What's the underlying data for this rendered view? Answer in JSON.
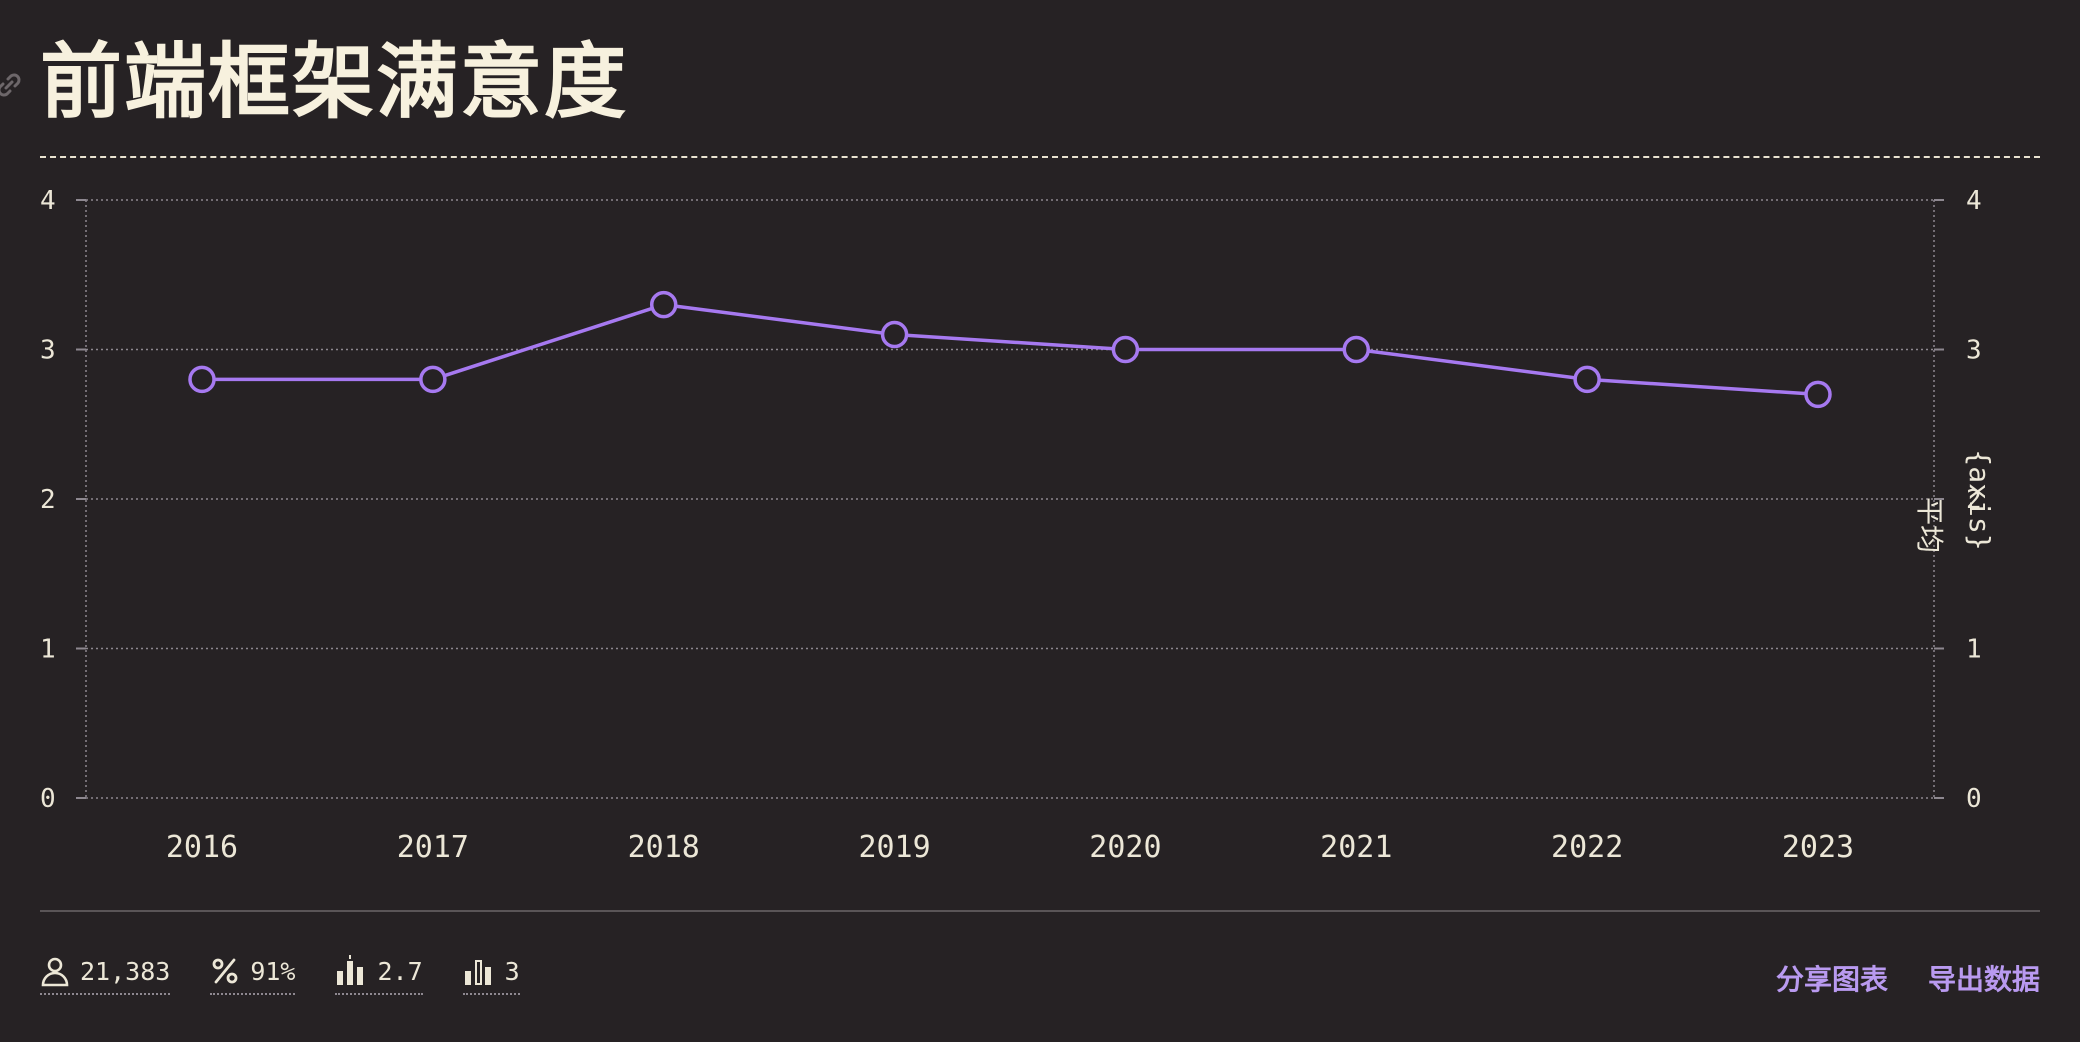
{
  "header": {
    "title": "前端框架满意度",
    "link_icon": "link-icon"
  },
  "chart_data": {
    "type": "line",
    "title": "前端框架满意度",
    "categories": [
      "2016",
      "2017",
      "2018",
      "2019",
      "2020",
      "2021",
      "2022",
      "2023"
    ],
    "series": [
      {
        "name": "平均",
        "values": [
          2.8,
          2.8,
          3.3,
          3.1,
          3.0,
          3.0,
          2.8,
          2.7
        ],
        "color": "#a679f0"
      }
    ],
    "ylim": [
      0,
      4
    ],
    "yticks": [
      "0",
      "1",
      "2",
      "3",
      "4"
    ],
    "xlabel": "",
    "ylabel": "平均",
    "ylabel_secondary": "{axis}",
    "grid": true,
    "legend": "none"
  },
  "footer": {
    "stats": [
      {
        "icon": "person-icon",
        "value": "21,383"
      },
      {
        "icon": "percent-icon",
        "value": "91%"
      },
      {
        "icon": "bar-chart-mean-icon",
        "value": "2.7"
      },
      {
        "icon": "bar-chart-median-icon",
        "value": "3"
      }
    ],
    "actions": {
      "share": "分享图表",
      "export": "导出数据"
    }
  },
  "colors": {
    "background": "#262224",
    "text": "#f7f1de",
    "accent": "#a679f0",
    "action": "#b99af0",
    "grid": "#8e8890"
  }
}
